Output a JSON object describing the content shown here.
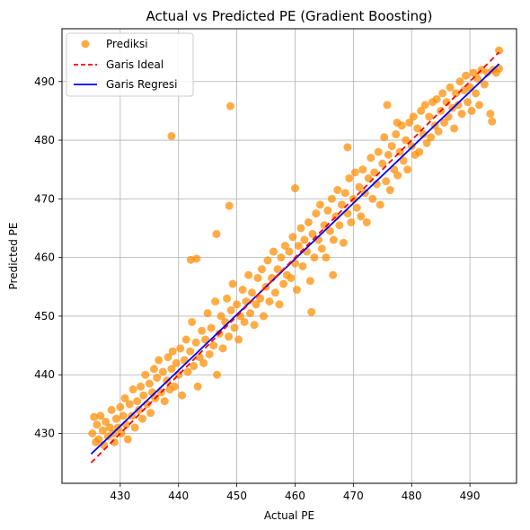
{
  "chart_data": {
    "type": "scatter",
    "title": "Actual vs Predicted PE (Gradient Boosting)",
    "xlabel": "Actual PE",
    "ylabel": "Predicted PE",
    "xlim": [
      420.0,
      498.0
    ],
    "ylim": [
      421.5,
      499.0
    ],
    "xticks": [
      430,
      440,
      450,
      460,
      470,
      480,
      490
    ],
    "yticks": [
      430,
      440,
      450,
      460,
      470,
      480,
      490
    ],
    "grid": true,
    "legend_position": "top-left",
    "colors": {
      "scatter": "#ff8c00",
      "ideal": "#ff0000",
      "regression": "#0000ff",
      "axis": "#000000",
      "grid": "#b0b0b0"
    },
    "legend": {
      "scatter_label": "Prediksi",
      "ideal_label": "Garis Ideal",
      "regression_label": "Garis Regresi"
    },
    "ideal_line": {
      "x": [
        425.0,
        495.0
      ],
      "y": [
        425.0,
        495.0
      ]
    },
    "regression_line": {
      "x": [
        425.0,
        495.0
      ],
      "y": [
        426.5,
        493.0
      ]
    },
    "series": [
      {
        "name": "Prediksi",
        "points": [
          [
            425.2,
            430.0
          ],
          [
            425.5,
            432.8
          ],
          [
            425.8,
            428.5
          ],
          [
            426.0,
            431.5
          ],
          [
            426.3,
            429.0
          ],
          [
            426.6,
            433.0
          ],
          [
            427.0,
            430.5
          ],
          [
            427.2,
            428.0
          ],
          [
            427.5,
            432.0
          ],
          [
            427.9,
            429.5
          ],
          [
            428.2,
            431.0
          ],
          [
            428.5,
            434.0
          ],
          [
            428.8,
            430.0
          ],
          [
            429.0,
            428.5
          ],
          [
            429.3,
            432.5
          ],
          [
            429.6,
            431.0
          ],
          [
            430.0,
            434.5
          ],
          [
            430.2,
            430.0
          ],
          [
            430.5,
            433.0
          ],
          [
            430.8,
            436.0
          ],
          [
            431.0,
            431.5
          ],
          [
            431.3,
            429.0
          ],
          [
            431.6,
            435.0
          ],
          [
            432.0,
            433.0
          ],
          [
            432.2,
            437.5
          ],
          [
            432.5,
            431.0
          ],
          [
            432.9,
            435.5
          ],
          [
            433.2,
            434.0
          ],
          [
            433.5,
            438.0
          ],
          [
            433.8,
            432.5
          ],
          [
            434.0,
            436.5
          ],
          [
            434.3,
            440.0
          ],
          [
            434.6,
            435.0
          ],
          [
            435.0,
            438.5
          ],
          [
            435.2,
            433.5
          ],
          [
            435.5,
            437.0
          ],
          [
            435.8,
            441.0
          ],
          [
            436.0,
            436.0
          ],
          [
            436.3,
            439.5
          ],
          [
            436.6,
            442.5
          ],
          [
            437.0,
            437.0
          ],
          [
            437.3,
            440.5
          ],
          [
            437.6,
            435.5
          ],
          [
            438.0,
            439.0
          ],
          [
            438.2,
            443.0
          ],
          [
            438.5,
            437.5
          ],
          [
            438.8,
            441.0
          ],
          [
            439.0,
            444.0
          ],
          [
            439.3,
            438.0
          ],
          [
            439.6,
            442.0
          ],
          [
            440.0,
            440.0
          ],
          [
            440.3,
            444.5
          ],
          [
            440.6,
            436.5
          ],
          [
            441.0,
            442.5
          ],
          [
            441.3,
            446.0
          ],
          [
            441.6,
            440.5
          ],
          [
            442.0,
            444.0
          ],
          [
            442.3,
            449.0
          ],
          [
            442.6,
            441.5
          ],
          [
            443.0,
            445.5
          ],
          [
            443.3,
            438.0
          ],
          [
            443.6,
            443.0
          ],
          [
            444.0,
            447.5
          ],
          [
            444.3,
            442.0
          ],
          [
            444.6,
            446.0
          ],
          [
            445.0,
            450.5
          ],
          [
            445.3,
            443.5
          ],
          [
            445.6,
            448.0
          ],
          [
            446.0,
            445.0
          ],
          [
            446.3,
            452.5
          ],
          [
            446.6,
            440.0
          ],
          [
            447.0,
            447.0
          ],
          [
            447.3,
            450.0
          ],
          [
            447.6,
            444.5
          ],
          [
            448.0,
            449.0
          ],
          [
            448.3,
            453.0
          ],
          [
            448.6,
            446.5
          ],
          [
            449.0,
            451.0
          ],
          [
            449.3,
            455.5
          ],
          [
            449.6,
            448.0
          ],
          [
            450.0,
            452.0
          ],
          [
            450.3,
            446.0
          ],
          [
            450.6,
            450.0
          ],
          [
            451.0,
            454.5
          ],
          [
            451.3,
            449.0
          ],
          [
            451.6,
            452.5
          ],
          [
            452.0,
            457.0
          ],
          [
            452.3,
            450.5
          ],
          [
            452.6,
            454.0
          ],
          [
            453.0,
            448.5
          ],
          [
            453.3,
            452.0
          ],
          [
            453.6,
            456.5
          ],
          [
            454.0,
            453.0
          ],
          [
            454.3,
            458.0
          ],
          [
            454.6,
            450.0
          ],
          [
            455.0,
            455.0
          ],
          [
            455.3,
            459.5
          ],
          [
            455.6,
            452.5
          ],
          [
            456.0,
            456.5
          ],
          [
            456.3,
            461.0
          ],
          [
            456.6,
            454.0
          ],
          [
            457.0,
            458.0
          ],
          [
            457.3,
            452.0
          ],
          [
            457.6,
            460.0
          ],
          [
            458.0,
            455.5
          ],
          [
            458.3,
            462.0
          ],
          [
            458.6,
            457.0
          ],
          [
            459.0,
            461.0
          ],
          [
            459.3,
            456.5
          ],
          [
            459.6,
            463.5
          ],
          [
            460.0,
            459.0
          ],
          [
            460.3,
            454.5
          ],
          [
            460.6,
            462.0
          ],
          [
            461.0,
            465.0
          ],
          [
            461.3,
            458.5
          ],
          [
            461.6,
            463.0
          ],
          [
            462.0,
            461.0
          ],
          [
            462.3,
            466.0
          ],
          [
            462.6,
            456.0
          ],
          [
            463.0,
            464.0
          ],
          [
            463.3,
            460.0
          ],
          [
            463.6,
            467.5
          ],
          [
            464.0,
            463.0
          ],
          [
            464.3,
            469.0
          ],
          [
            464.6,
            461.5
          ],
          [
            465.0,
            465.5
          ],
          [
            465.3,
            460.0
          ],
          [
            465.6,
            468.0
          ],
          [
            466.0,
            464.5
          ],
          [
            466.3,
            470.0
          ],
          [
            466.6,
            463.0
          ],
          [
            467.0,
            467.0
          ],
          [
            467.3,
            471.5
          ],
          [
            467.6,
            465.5
          ],
          [
            468.0,
            469.0
          ],
          [
            468.3,
            462.5
          ],
          [
            468.6,
            471.0
          ],
          [
            469.0,
            467.5
          ],
          [
            469.3,
            473.5
          ],
          [
            469.6,
            466.0
          ],
          [
            470.0,
            470.0
          ],
          [
            470.3,
            474.5
          ],
          [
            470.6,
            468.5
          ],
          [
            471.0,
            472.0
          ],
          [
            471.3,
            467.0
          ],
          [
            471.6,
            475.0
          ],
          [
            472.0,
            471.0
          ],
          [
            472.3,
            466.0
          ],
          [
            472.6,
            473.5
          ],
          [
            473.0,
            477.0
          ],
          [
            473.3,
            470.0
          ],
          [
            473.6,
            474.5
          ],
          [
            474.0,
            472.5
          ],
          [
            474.3,
            478.0
          ],
          [
            474.6,
            469.0
          ],
          [
            475.0,
            476.0
          ],
          [
            475.3,
            480.5
          ],
          [
            475.6,
            473.0
          ],
          [
            476.0,
            477.5
          ],
          [
            476.3,
            471.5
          ],
          [
            476.6,
            479.0
          ],
          [
            477.0,
            475.0
          ],
          [
            477.3,
            481.0
          ],
          [
            477.6,
            474.0
          ],
          [
            478.0,
            478.0
          ],
          [
            478.3,
            482.5
          ],
          [
            478.6,
            476.5
          ],
          [
            479.0,
            480.0
          ],
          [
            479.3,
            475.0
          ],
          [
            479.6,
            483.0
          ],
          [
            480.0,
            479.0
          ],
          [
            480.3,
            484.0
          ],
          [
            480.6,
            477.5
          ],
          [
            481.0,
            482.0
          ],
          [
            481.3,
            478.0
          ],
          [
            481.6,
            485.0
          ],
          [
            482.0,
            481.0
          ],
          [
            482.3,
            486.0
          ],
          [
            482.6,
            479.5
          ],
          [
            483.0,
            484.0
          ],
          [
            483.3,
            480.5
          ],
          [
            483.6,
            486.5
          ],
          [
            484.0,
            482.5
          ],
          [
            484.3,
            487.0
          ],
          [
            484.6,
            481.5
          ],
          [
            485.0,
            485.0
          ],
          [
            485.3,
            488.0
          ],
          [
            485.6,
            483.0
          ],
          [
            486.0,
            486.5
          ],
          [
            486.3,
            484.0
          ],
          [
            486.6,
            489.0
          ],
          [
            487.0,
            485.5
          ],
          [
            487.3,
            482.0
          ],
          [
            487.6,
            488.0
          ],
          [
            488.0,
            486.0
          ],
          [
            488.3,
            490.0
          ],
          [
            488.6,
            484.5
          ],
          [
            489.0,
            488.5
          ],
          [
            489.3,
            491.0
          ],
          [
            489.6,
            486.5
          ],
          [
            490.0,
            489.0
          ],
          [
            490.3,
            485.0
          ],
          [
            490.6,
            491.5
          ],
          [
            491.0,
            488.0
          ],
          [
            491.3,
            490.5
          ],
          [
            491.6,
            486.0
          ],
          [
            492.0,
            492.0
          ],
          [
            492.5,
            489.5
          ],
          [
            493.0,
            491.5
          ],
          [
            493.5,
            484.5
          ],
          [
            494.0,
            492.0
          ],
          [
            494.5,
            491.5
          ],
          [
            495.0,
            495.3
          ],
          [
            495.0,
            492.2
          ],
          [
            493.8,
            483.2
          ],
          [
            438.8,
            480.7
          ],
          [
            448.9,
            485.8
          ],
          [
            448.7,
            468.8
          ],
          [
            443.1,
            459.8
          ],
          [
            442.1,
            459.6
          ],
          [
            446.5,
            464.0
          ],
          [
            460.0,
            471.8
          ],
          [
            462.8,
            450.7
          ],
          [
            466.5,
            457.0
          ],
          [
            469.0,
            478.8
          ],
          [
            475.8,
            486.0
          ],
          [
            477.5,
            483.0
          ]
        ]
      }
    ]
  }
}
